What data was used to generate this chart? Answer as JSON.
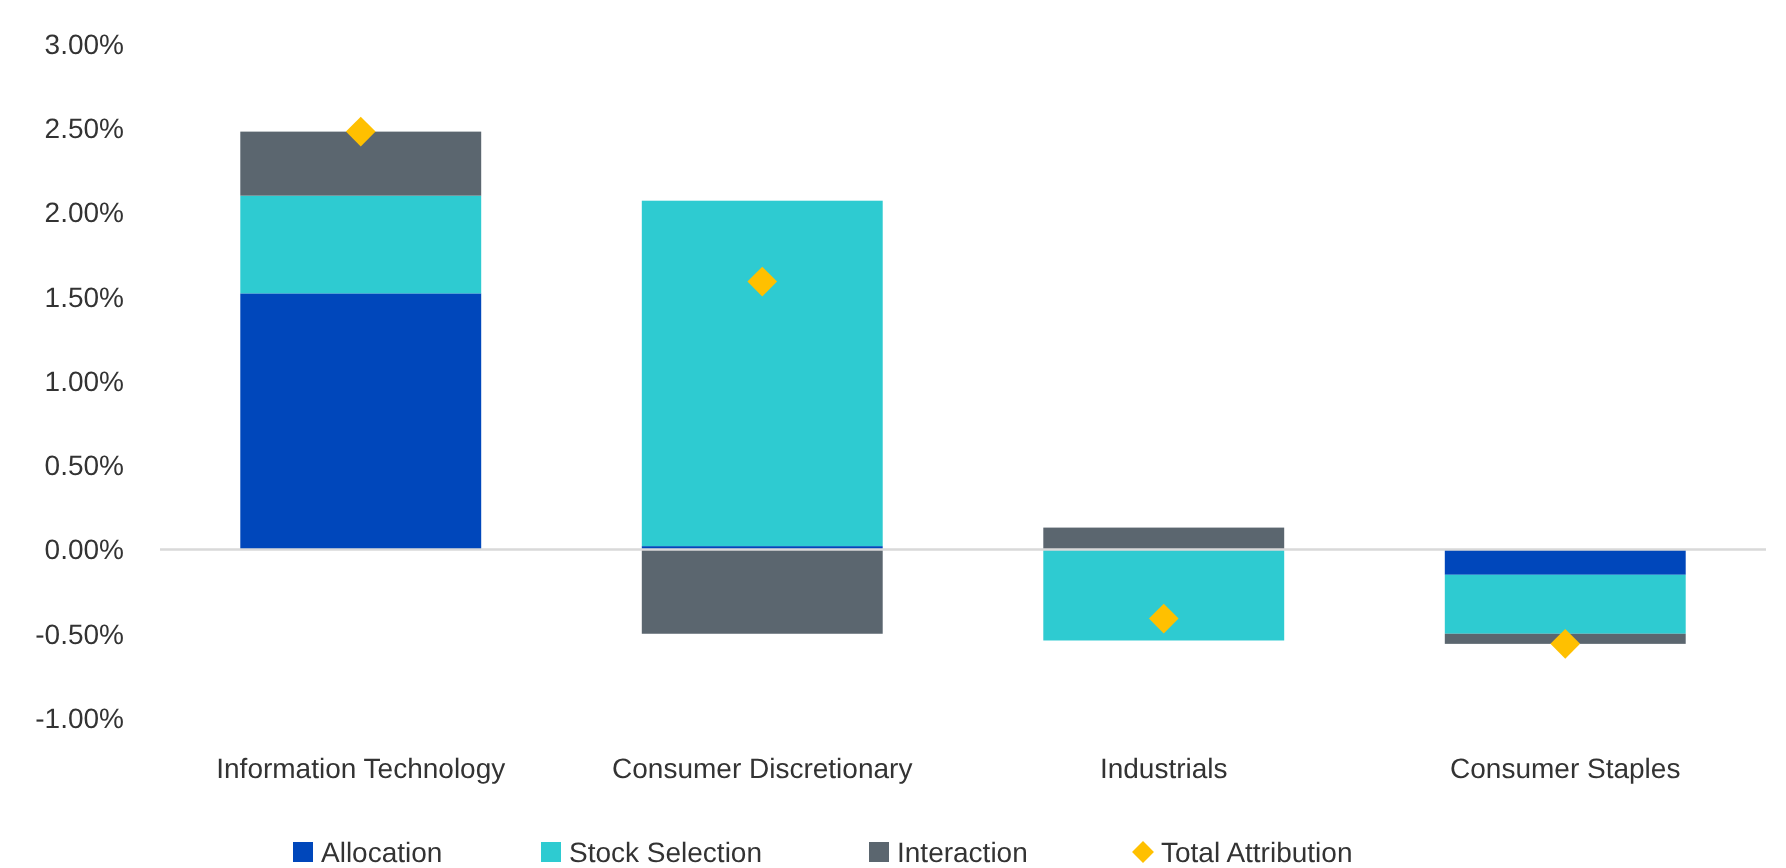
{
  "chart_data": {
    "type": "bar",
    "stacked": true,
    "categories": [
      "Information Technology",
      "Consumer Discretionary",
      "Industrials",
      "Consumer Staples"
    ],
    "series": [
      {
        "name": "Allocation",
        "color": "#0047bb",
        "values": [
          1.52,
          0.02,
          0,
          -0.15
        ]
      },
      {
        "name": "Stock Selection",
        "color": "#2ecbd1",
        "values": [
          0.58,
          2.05,
          -0.54,
          -0.35
        ]
      },
      {
        "name": "Interaction",
        "color": "#5b666f",
        "values": [
          0.38,
          -0.5,
          0.13,
          -0.06
        ]
      },
      {
        "name": "Total Attribution",
        "type": "scatter",
        "marker": "diamond",
        "color": "#ffc000",
        "values": [
          2.48,
          1.59,
          -0.41,
          -0.56
        ]
      }
    ],
    "ylim": [
      -1,
      3
    ],
    "yticks": [
      {
        "value": -1,
        "label": "-1.00%"
      },
      {
        "value": -0.5,
        "label": "-0.50%"
      },
      {
        "value": 0,
        "label": "0.00%"
      },
      {
        "value": 0.5,
        "label": "0.50%"
      },
      {
        "value": 1,
        "label": "1.00%"
      },
      {
        "value": 1.5,
        "label": "1.50%"
      },
      {
        "value": 2,
        "label": "2.00%"
      },
      {
        "value": 2.5,
        "label": "2.50%"
      },
      {
        "value": 3,
        "label": "3.00%"
      }
    ],
    "legend": "bottom"
  }
}
